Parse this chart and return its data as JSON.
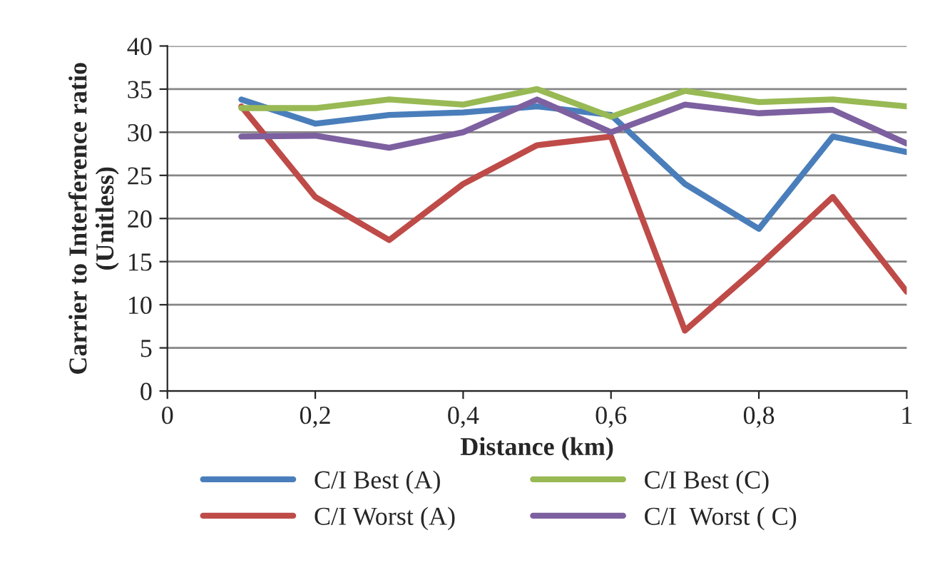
{
  "chart_data": {
    "type": "line",
    "xlabel": "Distance (km)",
    "ylabel": "Carrier to Interference ratio\n(Unitless)",
    "x": [
      0.1,
      0.2,
      0.3,
      0.4,
      0.5,
      0.6,
      0.7,
      0.8,
      0.9,
      1.0
    ],
    "series": [
      {
        "name": "C/I Best (A)",
        "color": "#4a7ebb",
        "values": [
          33.8,
          31,
          32,
          32.3,
          33,
          32,
          24,
          18.8,
          29.5,
          27.7
        ]
      },
      {
        "name": "C/I Worst (A)",
        "color": "#be4b48",
        "values": [
          33,
          22.5,
          17.5,
          24,
          28.5,
          29.5,
          7,
          14.5,
          22.5,
          11.5
        ]
      },
      {
        "name": "C/I Best (C)",
        "color": "#98b954",
        "values": [
          32.8,
          32.8,
          33.8,
          33.2,
          35,
          31.8,
          34.8,
          33.5,
          33.8,
          33
        ]
      },
      {
        "name": "C/I  Worst ( C)",
        "color": "#7d60a0",
        "values": [
          29.5,
          29.6,
          28.2,
          30,
          33.8,
          30,
          33.2,
          32.2,
          32.6,
          28.7
        ]
      }
    ],
    "xlim": [
      0,
      1
    ],
    "xticks": [
      0,
      {
        "value": 0.2,
        "label": "0,2"
      },
      {
        "value": 0.4,
        "label": "0,4"
      },
      {
        "value": 0.6,
        "label": "0,6"
      },
      {
        "value": 0.8,
        "label": "0,8"
      },
      1
    ],
    "ylim": [
      0,
      40
    ],
    "yticks": [
      0,
      5,
      10,
      15,
      20,
      25,
      30,
      35,
      40
    ],
    "grid": "y",
    "legend": "bottom",
    "line_style": "solid",
    "marker": "none"
  }
}
